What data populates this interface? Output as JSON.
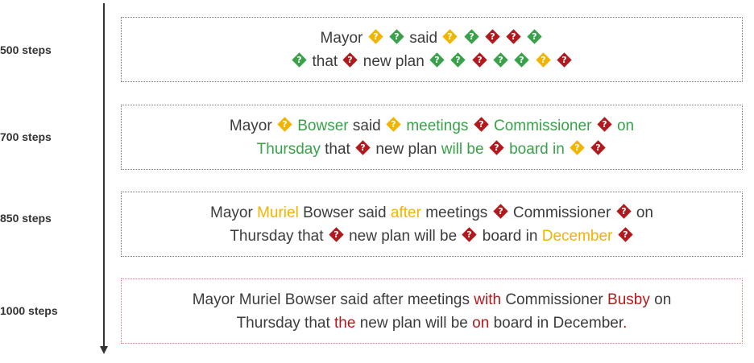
{
  "rows": [
    {
      "label": "500 steps",
      "tokens": [
        {
          "t": "Mayor",
          "c": "dark"
        },
        {
          "u": "yellow"
        },
        {
          "u": "green"
        },
        {
          "t": "said",
          "c": "dark"
        },
        {
          "u": "yellow"
        },
        {
          "u": "green"
        },
        {
          "u": "red"
        },
        {
          "u": "red"
        },
        {
          "u": "green"
        },
        {
          "br": true
        },
        {
          "u": "green"
        },
        {
          "t": "that",
          "c": "dark"
        },
        {
          "u": "red"
        },
        {
          "t": "new plan",
          "c": "dark"
        },
        {
          "u": "green"
        },
        {
          "u": "green"
        },
        {
          "u": "red"
        },
        {
          "u": "green"
        },
        {
          "u": "green"
        },
        {
          "u": "yellow"
        },
        {
          "u": "red"
        }
      ]
    },
    {
      "label": "700 steps",
      "tokens": [
        {
          "t": "Mayor",
          "c": "dark"
        },
        {
          "u": "yellow"
        },
        {
          "t": "Bowser",
          "c": "green"
        },
        {
          "t": "said",
          "c": "dark"
        },
        {
          "u": "yellow"
        },
        {
          "t": "meetings",
          "c": "green"
        },
        {
          "u": "red"
        },
        {
          "t": "Commissioner",
          "c": "green"
        },
        {
          "u": "red"
        },
        {
          "t": "on",
          "c": "green"
        },
        {
          "br": true
        },
        {
          "t": "Thursday",
          "c": "green"
        },
        {
          "t": "that",
          "c": "dark"
        },
        {
          "u": "red"
        },
        {
          "t": "new plan",
          "c": "dark"
        },
        {
          "t": "will be",
          "c": "green"
        },
        {
          "u": "red"
        },
        {
          "t": "board in",
          "c": "green"
        },
        {
          "u": "yellow"
        },
        {
          "u": "red"
        }
      ]
    },
    {
      "label": "850 steps",
      "tokens": [
        {
          "t": "Mayor",
          "c": "dark"
        },
        {
          "t": "Muriel",
          "c": "yellow"
        },
        {
          "t": "Bowser said",
          "c": "dark"
        },
        {
          "t": "after",
          "c": "yellow"
        },
        {
          "t": "meetings",
          "c": "dark"
        },
        {
          "u": "red"
        },
        {
          "t": "Commissioner",
          "c": "dark"
        },
        {
          "u": "red"
        },
        {
          "t": "on",
          "c": "dark"
        },
        {
          "br": true
        },
        {
          "t": "Thursday that",
          "c": "dark"
        },
        {
          "u": "red"
        },
        {
          "t": "new plan will be",
          "c": "dark"
        },
        {
          "u": "red"
        },
        {
          "t": "board in",
          "c": "dark"
        },
        {
          "t": "December",
          "c": "yellow"
        },
        {
          "u": "red"
        }
      ]
    },
    {
      "label": "1000 steps",
      "tokens": [
        {
          "t": "Mayor Muriel Bowser said after meetings",
          "c": "dark"
        },
        {
          "t": "with",
          "c": "red"
        },
        {
          "t": "Commissioner",
          "c": "dark"
        },
        {
          "t": "Busby",
          "c": "red"
        },
        {
          "t": "on",
          "c": "dark"
        },
        {
          "br": true
        },
        {
          "t": "Thursday that",
          "c": "dark"
        },
        {
          "t": "the",
          "c": "red"
        },
        {
          "t": "new plan will be",
          "c": "dark"
        },
        {
          "t": "on",
          "c": "red"
        },
        {
          "t": "board in December",
          "c": "dark"
        },
        {
          "t": ".",
          "c": "red",
          "nosp": true
        }
      ]
    }
  ]
}
